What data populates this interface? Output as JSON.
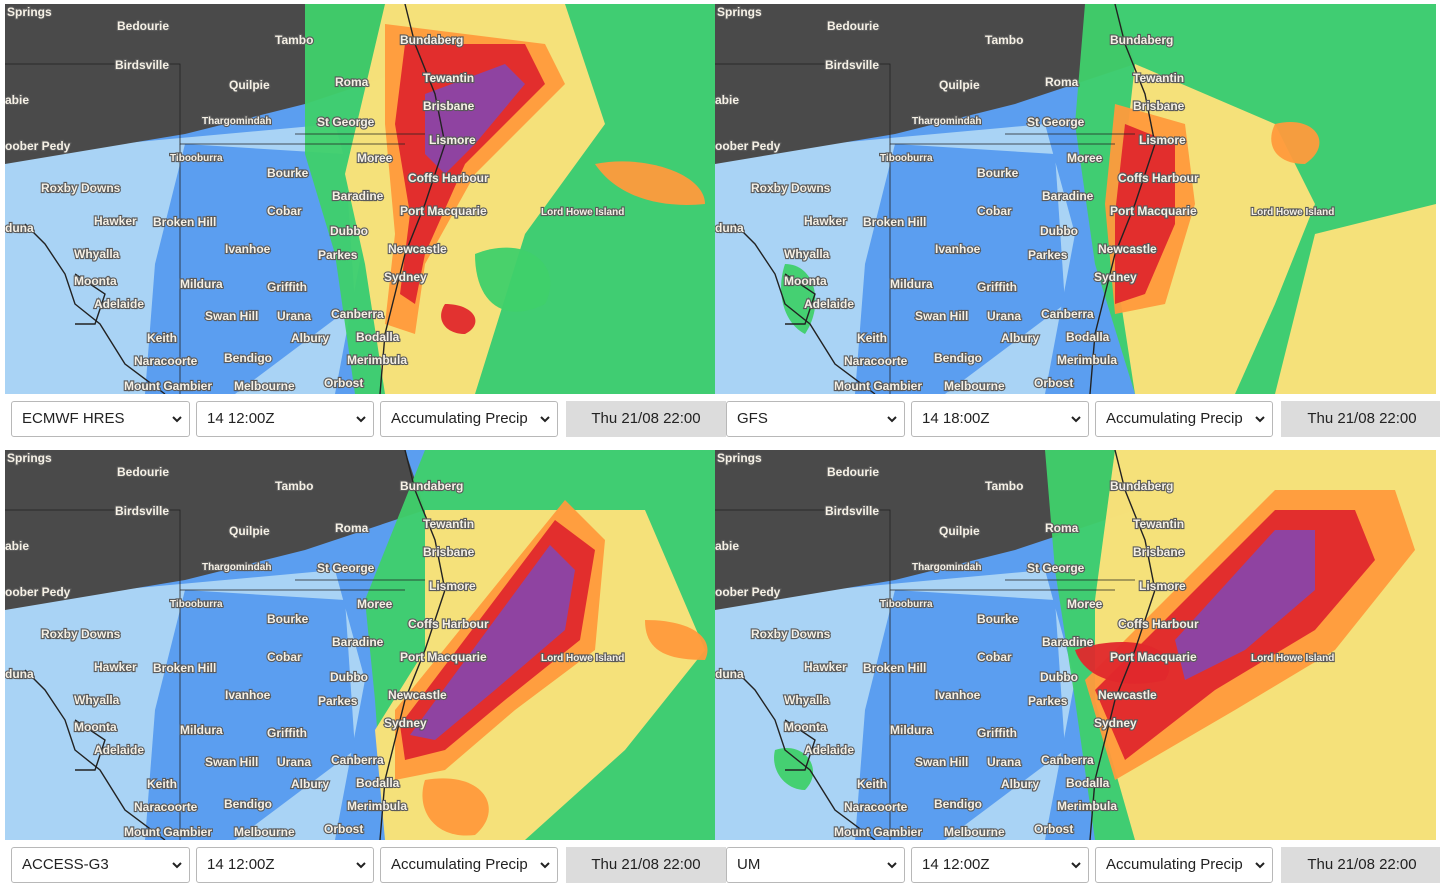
{
  "colors": {
    "ocean_base": "#3b5fd8",
    "dark_land": "#4a4a4a",
    "light_blue": "#a9d3f5",
    "mid_blue": "#5b9ef0",
    "green": "#3fd06a",
    "yellow": "#ffe27a",
    "orange": "#ff9a3c",
    "red": "#e0282c",
    "purple": "#8a45a8",
    "date_box": "#dcdcdc"
  },
  "labels": [
    {
      "text": "Springs"
    },
    {
      "text": "Bedourie"
    },
    {
      "text": "Tambo"
    },
    {
      "text": "Bundaberg"
    },
    {
      "text": "Birdsville"
    },
    {
      "text": "Quilpie"
    },
    {
      "text": "Roma"
    },
    {
      "text": "Tewantin"
    },
    {
      "text": "abie"
    },
    {
      "text": "Brisbane"
    },
    {
      "text": "Thargomindah"
    },
    {
      "text": "St George"
    },
    {
      "text": "Lismore"
    },
    {
      "text": "oober Pedy"
    },
    {
      "text": "Tibooburra"
    },
    {
      "text": "Moree"
    },
    {
      "text": "Bourke"
    },
    {
      "text": "Coffs Harbour"
    },
    {
      "text": "Roxby Downs"
    },
    {
      "text": "Baradine"
    },
    {
      "text": "Cobar"
    },
    {
      "text": "Port Macquarie"
    },
    {
      "text": "Lord Howe Island"
    },
    {
      "text": "Hawker"
    },
    {
      "text": "Broken Hill"
    },
    {
      "text": "Dubbo"
    },
    {
      "text": "duna"
    },
    {
      "text": "Ivanhoe"
    },
    {
      "text": "Newcastle"
    },
    {
      "text": "Whyalla"
    },
    {
      "text": "Parkes"
    },
    {
      "text": "Sydney"
    },
    {
      "text": "Moonta"
    },
    {
      "text": "Mildura"
    },
    {
      "text": "Griffith"
    },
    {
      "text": "Adelaide"
    },
    {
      "text": "Swan Hill"
    },
    {
      "text": "Urana"
    },
    {
      "text": "Canberra"
    },
    {
      "text": "Albury"
    },
    {
      "text": "Keith"
    },
    {
      "text": "Bodalla"
    },
    {
      "text": "Naracoorte"
    },
    {
      "text": "Bendigo"
    },
    {
      "text": "Merimbula"
    },
    {
      "text": "Mount Gambier"
    },
    {
      "text": "Melbourne"
    },
    {
      "text": "Orbost"
    }
  ],
  "panels": [
    {
      "model": "ECMWF HRES",
      "run": "14 12:00Z",
      "layer": "Accumulating Precip",
      "date": "Thu 21/08 22:00",
      "lord_howe_label": "Lord Howe Island"
    },
    {
      "model": "GFS",
      "run": "14 18:00Z",
      "layer": "Accumulating Precip",
      "date": "Thu 21/08 22:00",
      "lord_howe_label": "Lord Howe Island"
    },
    {
      "model": "ACCESS-G3",
      "run": "14 12:00Z",
      "layer": "Accumulating Precip",
      "date": "Thu 21/08 22:00",
      "lord_howe_label": "Lord Howe Island"
    },
    {
      "model": "UM",
      "run": "14 12:00Z",
      "layer": "Accumulating Precip",
      "date": "Thu 21/08 22:00",
      "lord_howe_label": "Lord Howe Island"
    }
  ]
}
